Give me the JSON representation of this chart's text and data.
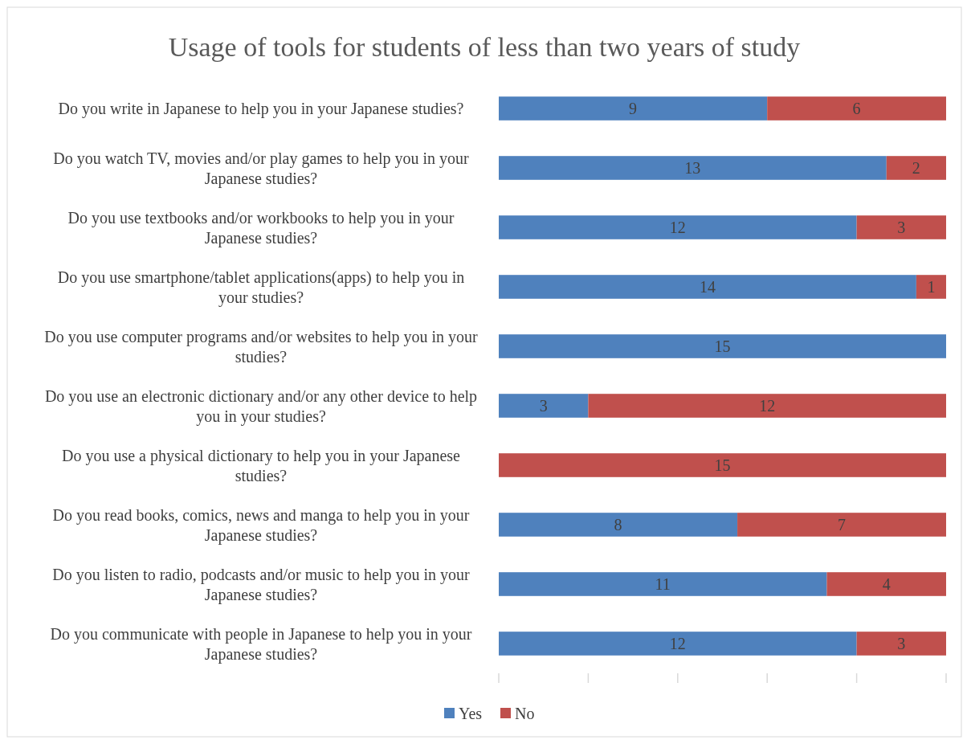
{
  "chart_data": {
    "type": "bar",
    "orientation": "horizontal",
    "stacked": true,
    "title": "Usage of tools for students of less than two years of study",
    "categories": [
      "Do you write in Japanese to help you in your Japanese studies?",
      "Do you watch TV, movies and/or play games to help you in your Japanese studies?",
      "Do you use textbooks and/or workbooks to help you in your Japanese studies?",
      "Do you use smartphone/tablet applications(apps) to help you in your studies?",
      "Do you use computer programs and/or websites to help you in your studies?",
      "Do you use an electronic dictionary and/or any other device to help you in your studies?",
      "Do you use a physical dictionary to help you in your Japanese studies?",
      "Do you read books, comics, news and manga to help you in your Japanese studies?",
      "Do you listen to radio, podcasts and/or music to help you in your Japanese studies?",
      "Do you communicate with people in Japanese to help you in your Japanese studies?"
    ],
    "series": [
      {
        "name": "Yes",
        "color": "#4f81bd",
        "values": [
          9,
          13,
          12,
          14,
          15,
          3,
          0,
          8,
          11,
          12
        ],
        "value_labels": [
          "9",
          "13",
          "12",
          "14",
          "15",
          "3",
          null,
          "8",
          "11",
          "12"
        ]
      },
      {
        "name": "No",
        "color": "#c0504d",
        "values": [
          6,
          2,
          3,
          1,
          0,
          12,
          15,
          7,
          4,
          3
        ],
        "value_labels": [
          "6",
          "2",
          "3",
          "1",
          null,
          "12",
          "15",
          "7",
          "4",
          "3"
        ]
      }
    ],
    "xlim": [
      0,
      15
    ],
    "xticks": [
      {
        "value": 0,
        "label": null
      },
      {
        "value": 3,
        "label": null
      },
      {
        "value": 6,
        "label": null
      },
      {
        "value": 9,
        "label": null
      },
      {
        "value": 12,
        "label": null
      },
      {
        "value": 15,
        "label": null
      }
    ],
    "legend": "bottom"
  }
}
